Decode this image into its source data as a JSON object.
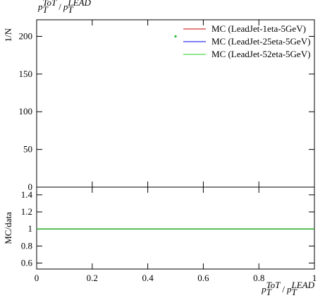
{
  "chart_data": [
    {
      "type": "scatter",
      "title_parts": [
        "p",
        "T",
        "ToT",
        "/",
        "p",
        "T",
        "LEAD"
      ],
      "ylabel": "1/N",
      "xlim": [
        0,
        1
      ],
      "ylim": [
        0,
        222
      ],
      "yticks": [
        0,
        50,
        100,
        150,
        200
      ],
      "legend": "top-right",
      "series": [
        {
          "name": "MC (LeadJet-1eta-5GeV)",
          "color": "#cc0000",
          "x": [
            0.5
          ],
          "values": [
            200
          ]
        },
        {
          "name": "MC (LeadJet-25eta-5GeV)",
          "color": "#0000ee",
          "x": [
            0.5
          ],
          "values": [
            200
          ]
        },
        {
          "name": "MC (LeadJet-52eta-5GeV)",
          "color": "#22cc22",
          "x": [
            0.5
          ],
          "values": [
            200
          ]
        }
      ]
    },
    {
      "type": "line",
      "ylabel": "MC/data",
      "xlabel_parts": [
        "p",
        "T",
        "ToT",
        "/",
        "p",
        "T",
        "LEAD"
      ],
      "xlim": [
        0,
        1
      ],
      "xticks": [
        0,
        0.2,
        0.4,
        0.6,
        0.8,
        1
      ],
      "ylim": [
        0.53,
        1.49
      ],
      "yticks": [
        0.6,
        0.8,
        1,
        1.2,
        1.4
      ],
      "series": [
        {
          "color": "#cc0000",
          "x": [
            0,
            1
          ],
          "values": [
            1,
            1
          ]
        },
        {
          "color": "#0000ee",
          "x": [
            0,
            1
          ],
          "values": [
            1,
            1
          ]
        },
        {
          "color": "#22aa22",
          "x": [
            0,
            1
          ],
          "values": [
            1,
            1
          ]
        }
      ]
    }
  ]
}
